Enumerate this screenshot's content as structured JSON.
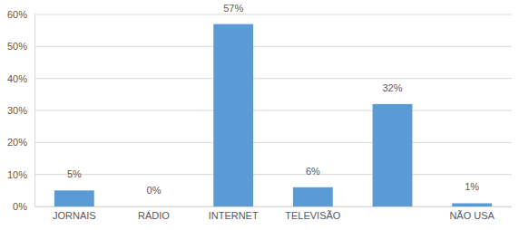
{
  "chart_data": {
    "type": "bar",
    "categories": [
      "JORNAIS",
      "RÁDIO",
      "INTERNET",
      "TELEVISÃO",
      null,
      "NÃO USA"
    ],
    "values": [
      5,
      0,
      57,
      6,
      32,
      1
    ],
    "value_labels": [
      "5%",
      "0%",
      "57%",
      "6%",
      "32%",
      "1%"
    ],
    "color": "#5b9bd5",
    "ylim": [
      0,
      60
    ],
    "yticks": [
      {
        "value": 0,
        "label": "0%"
      },
      {
        "value": 10,
        "label": "10%"
      },
      {
        "value": 20,
        "label": "20%"
      },
      {
        "value": 30,
        "label": "30%"
      },
      {
        "value": 40,
        "label": "40%"
      },
      {
        "value": 50,
        "label": "50%"
      },
      {
        "value": 60,
        "label": "60%"
      }
    ],
    "grid": true,
    "data_labels": true
  }
}
